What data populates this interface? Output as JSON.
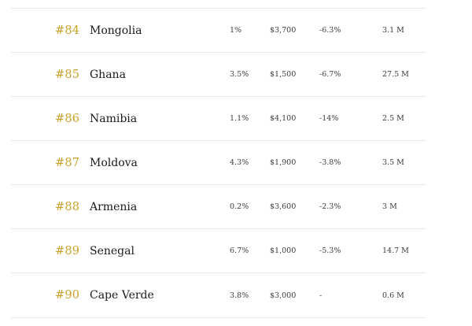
{
  "accent_color": "#c9a227",
  "rows": [
    {
      "rank": "#84",
      "country": "Mongolia",
      "growth": "1%",
      "gdp_per_capita": "$3,700",
      "change": "-6.3%",
      "population": "3.1 M"
    },
    {
      "rank": "#85",
      "country": "Ghana",
      "growth": "3.5%",
      "gdp_per_capita": "$1,500",
      "change": "-6.7%",
      "population": "27.5 M"
    },
    {
      "rank": "#86",
      "country": "Namibia",
      "growth": "1.1%",
      "gdp_per_capita": "$4,100",
      "change": "-14%",
      "population": "2.5 M"
    },
    {
      "rank": "#87",
      "country": "Moldova",
      "growth": "4.3%",
      "gdp_per_capita": "$1,900",
      "change": "-3.8%",
      "population": "3.5 M"
    },
    {
      "rank": "#88",
      "country": "Armenia",
      "growth": "0.2%",
      "gdp_per_capita": "$3,600",
      "change": "-2.3%",
      "population": "3 M"
    },
    {
      "rank": "#89",
      "country": "Senegal",
      "growth": "6.7%",
      "gdp_per_capita": "$1,000",
      "change": "-5.3%",
      "population": "14.7 M"
    },
    {
      "rank": "#90",
      "country": "Cape Verde",
      "growth": "3.8%",
      "gdp_per_capita": "$3,000",
      "change": "-",
      "population": "0.6 M"
    }
  ]
}
